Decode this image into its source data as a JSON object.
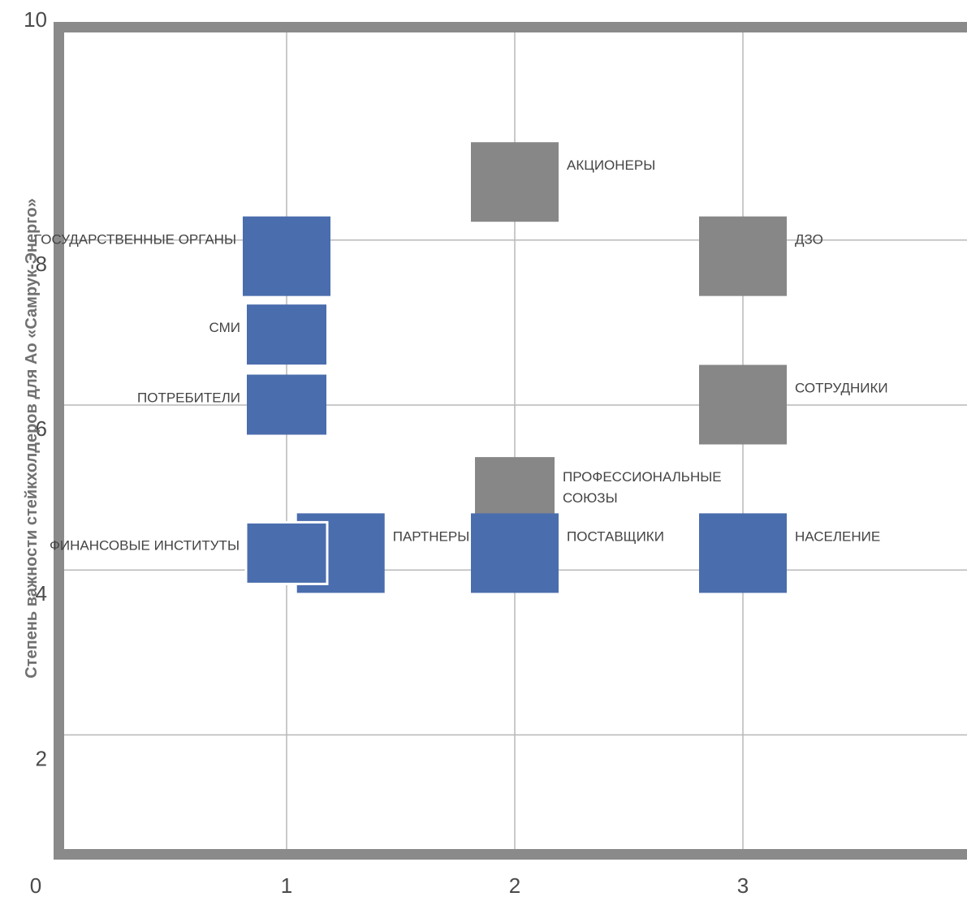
{
  "chart_data": {
    "type": "scatter",
    "title": "",
    "xlabel": "",
    "ylabel": "Степень важности стейкхолдеров для Ао «Самрук-Энерго»",
    "xlim": [
      0,
      3.9
    ],
    "ylim": [
      0.8,
      10
    ],
    "grid": true,
    "x_ticks": [
      0,
      1,
      2,
      3
    ],
    "y_ticks": [
      2,
      4,
      6,
      8,
      10
    ],
    "colors": {
      "primary": "#4A6DAD",
      "secondary": "#878787",
      "grid": "#b8b8b8",
      "frame": "#8a8a8a"
    },
    "points": [
      {
        "label": "АКЦИОНЕРЫ",
        "x": 2.0,
        "y": 9.0,
        "group": "secondary"
      },
      {
        "label": "ГОСУДАРСТВЕННЫЕ ОРГАНЫ",
        "x": 1.0,
        "y": 8.1,
        "group": "primary"
      },
      {
        "label": "ДЗО",
        "x": 3.0,
        "y": 8.1,
        "group": "secondary"
      },
      {
        "label": "СМИ",
        "x": 1.0,
        "y": 7.15,
        "group": "primary"
      },
      {
        "label": "ПОТРЕБИТЕЛИ",
        "x": 1.0,
        "y": 6.3,
        "group": "primary"
      },
      {
        "label": "СОТРУДНИКИ",
        "x": 3.0,
        "y": 6.3,
        "group": "secondary"
      },
      {
        "label": "ПРОФЕССИОНАЛЬНЫЕ СОЮЗЫ",
        "x": 2.0,
        "y": 5.3,
        "group": "secondary"
      },
      {
        "label": "ПАРТНЕРЫ",
        "x": 1.12,
        "y": 4.5,
        "group": "primary"
      },
      {
        "label": "ФИНАНСОВЫЕ ИНСТИТУТЫ",
        "x": 1.0,
        "y": 4.5,
        "group": "primary"
      },
      {
        "label": "ПОСТАВЩИКИ",
        "x": 2.0,
        "y": 4.5,
        "group": "primary"
      },
      {
        "label": "НАСЕЛЕНИЕ",
        "x": 3.0,
        "y": 4.5,
        "group": "primary"
      }
    ]
  }
}
